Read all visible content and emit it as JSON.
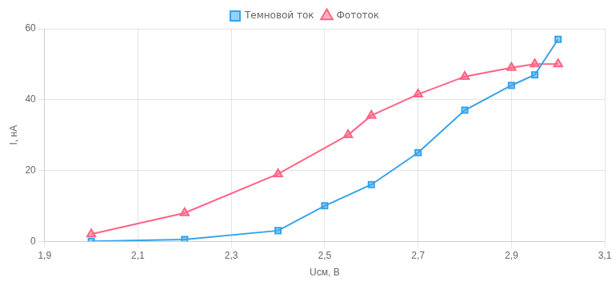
{
  "chart_data": {
    "type": "line",
    "xlabel": "Uсм, В",
    "ylabel": "I, нА",
    "series": [
      {
        "name": "Темновой ток",
        "marker": "square",
        "x": [
          2.0,
          2.2,
          2.4,
          2.5,
          2.6,
          2.7,
          2.8,
          2.9,
          2.95,
          3.0
        ],
        "values": [
          0.0,
          0.5,
          3.0,
          10.0,
          16.0,
          25.0,
          37.0,
          44.0,
          47.0,
          57.0
        ]
      },
      {
        "name": "Фототок",
        "marker": "triangle",
        "x": [
          2.0,
          2.2,
          2.4,
          2.55,
          2.6,
          2.7,
          2.8,
          2.9,
          2.95,
          3.0
        ],
        "values": [
          2.0,
          8.0,
          19.0,
          30.0,
          35.5,
          41.5,
          46.5,
          49.0,
          50.0,
          50.0
        ]
      }
    ],
    "xlim": [
      1.9,
      3.1
    ],
    "xticks": [
      {
        "value": 1.9,
        "label": "1,9"
      },
      {
        "value": 2.1,
        "label": "2,1"
      },
      {
        "value": 2.3,
        "label": "2,3"
      },
      {
        "value": 2.5,
        "label": "2,5"
      },
      {
        "value": 2.7,
        "label": "2,7"
      },
      {
        "value": 2.9,
        "label": "2,9"
      },
      {
        "value": 3.1,
        "label": "3,1"
      }
    ],
    "ylim": [
      0,
      60
    ],
    "yticks": [
      0,
      20,
      40,
      60
    ],
    "grid": true,
    "legend": "top"
  }
}
